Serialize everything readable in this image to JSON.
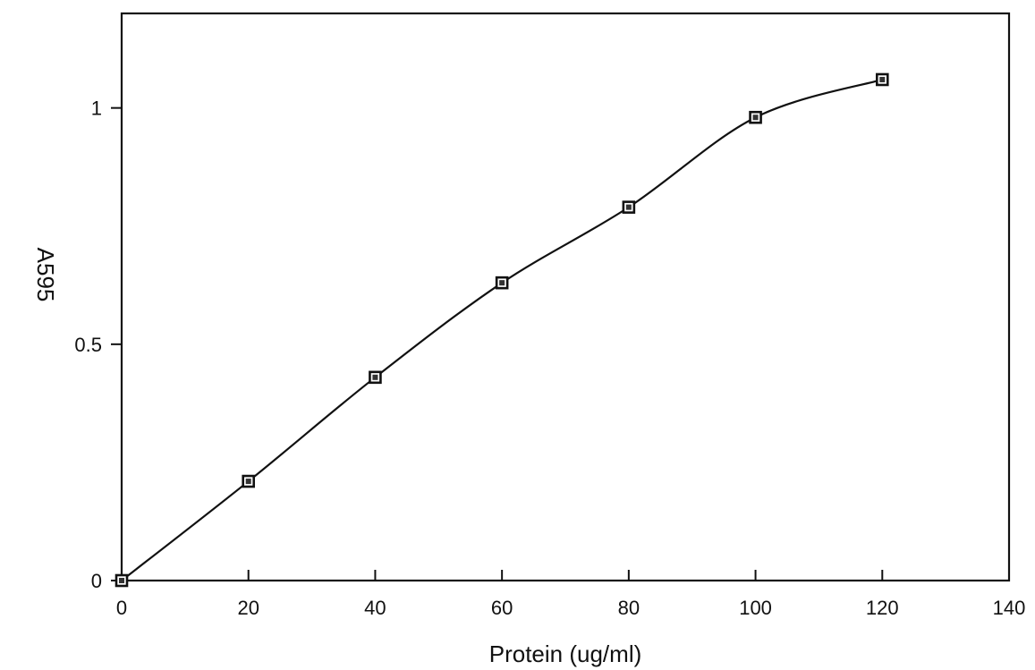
{
  "chart_data": {
    "type": "scatter",
    "title": "",
    "xlabel": "Protein (ug/ml)",
    "ylabel": "A595",
    "xlim": [
      0,
      140
    ],
    "ylim": [
      0,
      1.2
    ],
    "xticks": [
      0,
      20,
      40,
      60,
      80,
      100,
      120,
      140
    ],
    "yticks": [
      0,
      0.5,
      1
    ],
    "xtick_labels": [
      "0",
      "20",
      "40",
      "60",
      "80",
      "100",
      "120",
      "140"
    ],
    "ytick_labels": [
      "0",
      "0.5",
      "1"
    ],
    "grid": false,
    "series": [
      {
        "x": [
          0,
          20,
          40,
          60,
          80,
          100,
          120
        ],
        "y": [
          0,
          0.21,
          0.43,
          0.63,
          0.79,
          0.98,
          1.06
        ],
        "marker": "square",
        "fit_line": true
      }
    ]
  }
}
